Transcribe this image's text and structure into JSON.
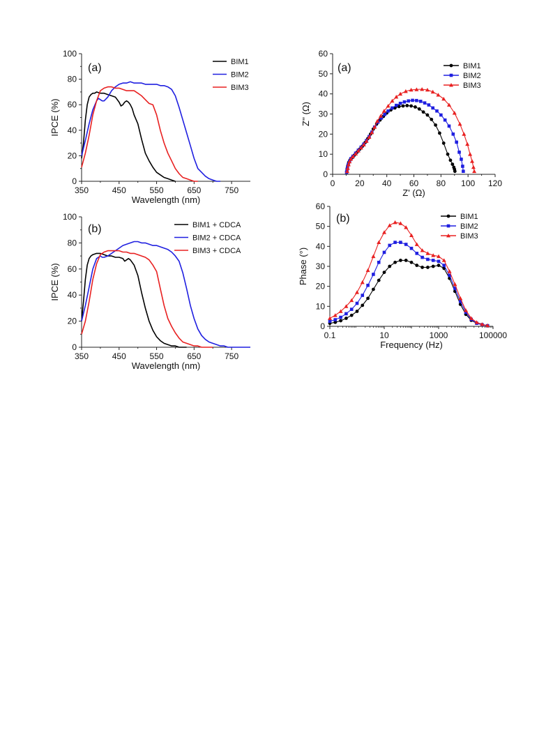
{
  "chart_data": [
    {
      "id": "ipce_a",
      "type": "line",
      "panel_label": "(a)",
      "xlabel": "Wavelength (nm)",
      "ylabel": "IPCE (%)",
      "xlim": [
        350,
        800
      ],
      "ylim": [
        0,
        100
      ],
      "xticks": [
        350,
        450,
        550,
        650,
        750
      ],
      "yticks": [
        0,
        20,
        40,
        60,
        80,
        100
      ],
      "legend_position": "top-right",
      "series": [
        {
          "name": "BIM1",
          "color": "#000000",
          "x": [
            350,
            355,
            360,
            365,
            370,
            375,
            380,
            385,
            390,
            400,
            410,
            420,
            430,
            440,
            450,
            455,
            460,
            465,
            470,
            475,
            480,
            485,
            490,
            500,
            510,
            520,
            530,
            540,
            550,
            560,
            570,
            580,
            590,
            600
          ],
          "y": [
            18,
            30,
            48,
            60,
            66,
            68,
            69,
            69,
            70,
            69,
            69,
            68,
            67,
            66,
            62,
            59,
            60,
            62,
            63,
            62,
            60,
            57,
            52,
            45,
            33,
            22,
            16,
            11,
            7,
            5,
            3,
            2,
            1,
            0
          ]
        },
        {
          "name": "BIM2",
          "color": "#1f1fe0",
          "x": [
            350,
            360,
            370,
            380,
            390,
            395,
            400,
            405,
            410,
            420,
            430,
            440,
            450,
            460,
            470,
            480,
            490,
            500,
            510,
            520,
            530,
            540,
            550,
            560,
            570,
            580,
            590,
            600,
            610,
            620,
            630,
            640,
            650,
            660,
            670,
            680,
            690,
            700,
            710,
            720
          ],
          "y": [
            20,
            32,
            45,
            56,
            63,
            65,
            64,
            63,
            63,
            66,
            71,
            74,
            76,
            77,
            77,
            78,
            77,
            77,
            77,
            76,
            76,
            76,
            76,
            75,
            75,
            74,
            72,
            67,
            58,
            48,
            38,
            28,
            18,
            10,
            7,
            4,
            2,
            1,
            0,
            0
          ]
        },
        {
          "name": "BIM3",
          "color": "#e82020",
          "x": [
            350,
            360,
            370,
            380,
            390,
            400,
            410,
            420,
            430,
            440,
            450,
            460,
            470,
            480,
            490,
            500,
            510,
            520,
            530,
            540,
            550,
            560,
            570,
            580,
            590,
            600,
            610,
            620,
            630,
            640,
            650,
            660
          ],
          "y": [
            11,
            22,
            36,
            52,
            63,
            71,
            73,
            74,
            74,
            73,
            73,
            72,
            71,
            71,
            71,
            69,
            67,
            64,
            61,
            60,
            52,
            40,
            30,
            22,
            16,
            10,
            6,
            3,
            2,
            1,
            0,
            0
          ]
        }
      ]
    },
    {
      "id": "ipce_b",
      "type": "line",
      "panel_label": "(b)",
      "xlabel": "Wavelength (nm)",
      "ylabel": "IPCE (%)",
      "xlim": [
        350,
        800
      ],
      "ylim": [
        0,
        100
      ],
      "xticks": [
        350,
        450,
        550,
        650,
        750
      ],
      "yticks": [
        0,
        20,
        40,
        60,
        80,
        100
      ],
      "legend_position": "top-right",
      "series": [
        {
          "name": "BIM1 + CDCA",
          "color": "#000000",
          "x": [
            350,
            355,
            360,
            365,
            370,
            375,
            380,
            390,
            400,
            410,
            420,
            430,
            440,
            450,
            460,
            465,
            470,
            475,
            480,
            490,
            500,
            510,
            520,
            530,
            540,
            550,
            560,
            570,
            580,
            590,
            600,
            610,
            620,
            630
          ],
          "y": [
            20,
            35,
            52,
            63,
            68,
            70,
            71,
            72,
            72,
            71,
            70,
            70,
            69,
            69,
            68,
            66,
            67,
            68,
            67,
            63,
            55,
            42,
            30,
            20,
            13,
            8,
            5,
            3,
            2,
            1,
            1,
            0,
            0,
            0
          ]
        },
        {
          "name": "BIM2 + CDCA",
          "color": "#1f1fe0",
          "x": [
            350,
            360,
            370,
            380,
            390,
            400,
            405,
            410,
            420,
            430,
            440,
            450,
            460,
            470,
            480,
            490,
            500,
            510,
            520,
            530,
            540,
            550,
            560,
            570,
            580,
            590,
            600,
            610,
            620,
            630,
            640,
            650,
            660,
            670,
            680,
            690,
            700,
            710,
            720,
            730,
            740,
            750,
            760,
            770,
            780,
            790,
            800
          ],
          "y": [
            20,
            32,
            46,
            60,
            68,
            70,
            69,
            69,
            70,
            72,
            74,
            76,
            78,
            79,
            80,
            81,
            81,
            80,
            80,
            79,
            78,
            78,
            77,
            76,
            75,
            73,
            70,
            66,
            57,
            45,
            32,
            22,
            14,
            9,
            6,
            4,
            3,
            2,
            1,
            1,
            0,
            0,
            0,
            0,
            0,
            0,
            0
          ]
        },
        {
          "name": "BIM3 + CDCA",
          "color": "#e82020",
          "x": [
            350,
            360,
            370,
            380,
            390,
            400,
            410,
            420,
            430,
            440,
            450,
            460,
            470,
            480,
            490,
            500,
            510,
            520,
            530,
            540,
            550,
            560,
            570,
            580,
            590,
            600,
            610,
            620,
            630,
            640,
            650,
            660,
            670,
            680,
            690,
            700
          ],
          "y": [
            10,
            20,
            35,
            52,
            64,
            71,
            73,
            74,
            74,
            74,
            74,
            73,
            73,
            72,
            72,
            71,
            70,
            69,
            67,
            63,
            58,
            45,
            32,
            22,
            16,
            11,
            7,
            4,
            3,
            2,
            1,
            1,
            0,
            0,
            0,
            0
          ]
        }
      ]
    },
    {
      "id": "nyquist_a",
      "type": "line",
      "panel_label": "(a)",
      "xlabel": "Z' (Ω)",
      "ylabel": "Z'' (Ω)",
      "xlim": [
        0,
        120
      ],
      "ylim": [
        0,
        60
      ],
      "xticks": [
        0,
        20,
        40,
        60,
        80,
        100,
        120
      ],
      "yticks": [
        0,
        10,
        20,
        30,
        40,
        50,
        60
      ],
      "legend_position": "top-right",
      "marker_on_points": true,
      "series": [
        {
          "name": "BIM1",
          "color": "#000000",
          "marker": "circle",
          "x": [
            10.5,
            10.8,
            11.3,
            12,
            13,
            14.5,
            16,
            18,
            20,
            22,
            24,
            26,
            28,
            30,
            32.5,
            35,
            37.5,
            40,
            43,
            46,
            49,
            52,
            55,
            58,
            61,
            64,
            67,
            70,
            73,
            76,
            79,
            82,
            85,
            87,
            88.5,
            89.5,
            90,
            90.3
          ],
          "y": [
            1.5,
            3,
            4.5,
            6,
            7.2,
            8.3,
            9.5,
            11,
            12.5,
            14,
            15.8,
            17.8,
            20,
            22.5,
            25,
            27,
            28.8,
            30.5,
            32,
            33,
            33.7,
            34,
            34.2,
            34,
            33.5,
            32.5,
            31,
            29.5,
            27.3,
            24.5,
            20.5,
            15.5,
            10,
            7,
            5,
            3.5,
            2.5,
            1.5
          ]
        },
        {
          "name": "BIM2",
          "color": "#1f1fe0",
          "marker": "square",
          "x": [
            10.3,
            10.6,
            11,
            11.6,
            12.5,
            13.5,
            15,
            17,
            19,
            21,
            23,
            25,
            27,
            29,
            31,
            33.5,
            36,
            38.5,
            41,
            44,
            47,
            50,
            53,
            56,
            59,
            62,
            65,
            68,
            71,
            74,
            77,
            80,
            83,
            86,
            89,
            91.5,
            93.5,
            95,
            96,
            96.5
          ],
          "y": [
            1,
            2,
            3.5,
            5,
            6.5,
            7.8,
            9,
            10.5,
            12,
            13.5,
            15,
            16.8,
            18.8,
            21,
            23.5,
            26,
            28,
            29.8,
            31.5,
            33,
            34.3,
            35.3,
            36,
            36.5,
            36.8,
            36.7,
            36.3,
            35.5,
            34.5,
            33,
            31.5,
            29.5,
            27,
            24,
            20,
            16,
            11,
            7.5,
            4,
            1.5
          ]
        },
        {
          "name": "BIM3",
          "color": "#e82020",
          "marker": "triangle",
          "x": [
            10.8,
            11.2,
            11.8,
            12.5,
            13.5,
            15,
            17,
            19,
            21,
            23,
            25,
            27,
            29,
            31,
            33,
            35.5,
            38,
            41,
            44,
            47,
            50,
            54,
            58,
            62,
            66,
            70,
            74,
            78,
            82,
            86,
            90,
            94,
            97,
            99.5,
            101.5,
            103,
            104,
            104.6
          ],
          "y": [
            1.5,
            3,
            4.8,
            6.3,
            7.6,
            8.8,
            10.2,
            11.7,
            13.2,
            14.7,
            16.5,
            18.5,
            20.8,
            23.5,
            26.5,
            29,
            31.5,
            34,
            36.5,
            38.5,
            40,
            41.3,
            42,
            42.2,
            42.3,
            42,
            41,
            39.5,
            37.5,
            34.5,
            30.5,
            25,
            20,
            15,
            10,
            6.5,
            3.5,
            1.5
          ]
        }
      ]
    },
    {
      "id": "bode_b",
      "type": "line",
      "panel_label": "(b)",
      "xlabel": "Frequency (Hz)",
      "ylabel": "Phase (°)",
      "xscale": "log",
      "xlim": [
        0.1,
        100000
      ],
      "ylim": [
        0,
        60
      ],
      "xticks": [
        0.1,
        10,
        1000,
        100000
      ],
      "xticklabels": [
        "0.1",
        "10",
        "1000",
        "100000"
      ],
      "yticks": [
        0,
        10,
        20,
        30,
        40,
        50,
        60
      ],
      "legend_position": "top-right",
      "marker_on_points": true,
      "series": [
        {
          "name": "BIM1",
          "color": "#000000",
          "marker": "circle",
          "x": [
            0.1,
            0.158,
            0.251,
            0.398,
            0.631,
            1,
            1.58,
            2.51,
            3.98,
            6.31,
            10,
            15.8,
            25.1,
            39.8,
            63.1,
            100,
            158,
            251,
            398,
            631,
            1000,
            1580,
            2510,
            3980,
            6310,
            10000,
            15800,
            25100,
            39800,
            63100
          ],
          "y": [
            1.5,
            2,
            2.8,
            4,
            5.5,
            7.5,
            10.5,
            14,
            18.5,
            23,
            27,
            30,
            32,
            33,
            33,
            32,
            30.5,
            29.5,
            29.5,
            30,
            30.5,
            29,
            24,
            17.5,
            11,
            6,
            3,
            1.5,
            0.8,
            0.3
          ]
        },
        {
          "name": "BIM2",
          "color": "#1f1fe0",
          "marker": "square",
          "x": [
            0.1,
            0.158,
            0.251,
            0.398,
            0.631,
            1,
            1.58,
            2.51,
            3.98,
            6.31,
            10,
            15.8,
            25.1,
            39.8,
            63.1,
            100,
            158,
            251,
            398,
            631,
            1000,
            1580,
            2510,
            3980,
            6310,
            10000,
            15800,
            25100,
            39800,
            63100
          ],
          "y": [
            2.5,
            3.3,
            4.5,
            6.3,
            8.5,
            11.5,
            15.5,
            20.5,
            26,
            32,
            37,
            40.5,
            42,
            42,
            41,
            39,
            36.5,
            34.5,
            33.5,
            33,
            32.5,
            30.5,
            25.5,
            19,
            12.5,
            7,
            3.5,
            1.5,
            0.8,
            0.3
          ]
        },
        {
          "name": "BIM3",
          "color": "#e82020",
          "marker": "triangle",
          "x": [
            0.1,
            0.158,
            0.251,
            0.398,
            0.631,
            1,
            1.58,
            2.51,
            3.98,
            6.31,
            10,
            15.8,
            25.1,
            39.8,
            63.1,
            100,
            158,
            251,
            398,
            631,
            1000,
            1580,
            2510,
            3980,
            6310,
            10000,
            15800,
            25100,
            39800,
            63100
          ],
          "y": [
            4,
            5.5,
            7.5,
            10,
            13,
            17,
            22,
            28,
            35,
            42,
            47,
            50.5,
            52,
            51.5,
            49.5,
            45.5,
            41,
            38,
            36.5,
            35.5,
            35,
            33,
            27.5,
            21,
            14,
            8,
            4,
            2,
            1,
            0.4
          ]
        }
      ]
    }
  ]
}
